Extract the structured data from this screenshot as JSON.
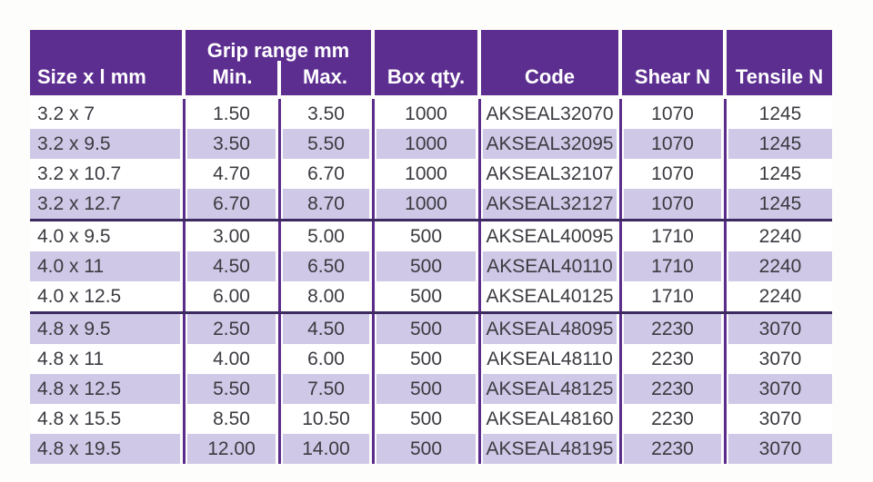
{
  "colors": {
    "page_bg": "#fdfdfb",
    "header_bg": "#5c2e90",
    "header_text": "#ffffff",
    "row_alt_bg": "#cfc8e6",
    "row_bg": "#ffffff",
    "column_line": "#5a2d8c",
    "group_separator": "#3c2a60",
    "body_text": "#3b3b41"
  },
  "table": {
    "header": {
      "size_col": "Size x l mm",
      "grip_group": "Grip range mm",
      "grip_min": "Min.",
      "grip_max": "Max.",
      "box_qty": "Box qty.",
      "code": "Code",
      "shear": "Shear N",
      "tensile": "Tensile N"
    },
    "column_keys": [
      "size",
      "grip-min",
      "grip-max",
      "box-qty",
      "code",
      "shear",
      "tensile"
    ],
    "rows": [
      [
        "3.2 x 7",
        "1.50",
        "3.50",
        "1000",
        "AKSEAL32070",
        "1070",
        "1245"
      ],
      [
        "3.2 x 9.5",
        "3.50",
        "5.50",
        "1000",
        "AKSEAL32095",
        "1070",
        "1245"
      ],
      [
        "3.2 x 10.7",
        "4.70",
        "6.70",
        "1000",
        "AKSEAL32107",
        "1070",
        "1245"
      ],
      [
        "3.2 x 12.7",
        "6.70",
        "8.70",
        "1000",
        "AKSEAL32127",
        "1070",
        "1245"
      ],
      [
        "4.0 x 9.5",
        "3.00",
        "5.00",
        "500",
        "AKSEAL40095",
        "1710",
        "2240"
      ],
      [
        "4.0 x 11",
        "4.50",
        "6.50",
        "500",
        "AKSEAL40110",
        "1710",
        "2240"
      ],
      [
        "4.0 x 12.5",
        "6.00",
        "8.00",
        "500",
        "AKSEAL40125",
        "1710",
        "2240"
      ],
      [
        "4.8 x 9.5",
        "2.50",
        "4.50",
        "500",
        "AKSEAL48095",
        "2230",
        "3070"
      ],
      [
        "4.8 x 11",
        "4.00",
        "6.00",
        "500",
        "AKSEAL48110",
        "2230",
        "3070"
      ],
      [
        "4.8 x 12.5",
        "5.50",
        "7.50",
        "500",
        "AKSEAL48125",
        "2230",
        "3070"
      ],
      [
        "4.8 x 15.5",
        "8.50",
        "10.50",
        "500",
        "AKSEAL48160",
        "2230",
        "3070"
      ],
      [
        "4.8 x 19.5",
        "12.00",
        "14.00",
        "500",
        "AKSEAL48195",
        "2230",
        "3070"
      ]
    ],
    "group_separators_after": [
      3,
      6
    ]
  }
}
